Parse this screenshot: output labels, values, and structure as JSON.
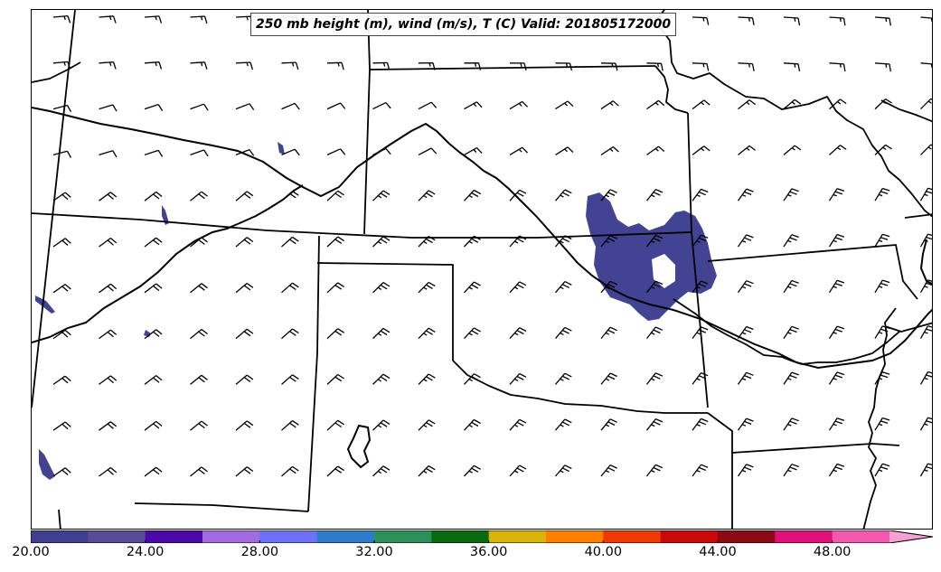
{
  "title": "250 mb height (m), wind (m/s), T (C) Valid: 201805172000",
  "colorbar": {
    "tick_labels": [
      "20.00",
      "24.00",
      "28.00",
      "32.00",
      "36.00",
      "40.00",
      "44.00",
      "48.00"
    ],
    "tick_values": [
      20,
      24,
      28,
      32,
      36,
      40,
      44,
      48
    ],
    "min": 20,
    "max": 51.5,
    "extend": "max",
    "bins": [
      {
        "from": 20,
        "to": 22,
        "color": "#3f3f8f"
      },
      {
        "from": 22,
        "to": 24,
        "color": "#5a4b99"
      },
      {
        "from": 24,
        "to": 26,
        "color": "#4a0aa8"
      },
      {
        "from": 26,
        "to": 28,
        "color": "#a36be0"
      },
      {
        "from": 28,
        "to": 30,
        "color": "#6b72f5"
      },
      {
        "from": 30,
        "to": 32,
        "color": "#2f7ac9"
      },
      {
        "from": 32,
        "to": 34,
        "color": "#2e8f5a"
      },
      {
        "from": 34,
        "to": 36,
        "color": "#0a6a12"
      },
      {
        "from": 36,
        "to": 38,
        "color": "#d9b20a"
      },
      {
        "from": 38,
        "to": 40,
        "color": "#ff7f00"
      },
      {
        "from": 40,
        "to": 42,
        "color": "#ee3a05"
      },
      {
        "from": 42,
        "to": 44,
        "color": "#c8080a"
      },
      {
        "from": 44,
        "to": 46,
        "color": "#8c0a14"
      },
      {
        "from": 46,
        "to": 48,
        "color": "#e0107a"
      },
      {
        "from": 48,
        "to": 50,
        "color": "#f25ab0"
      }
    ],
    "extend_color": "#f7a0d2"
  },
  "wind_field": {
    "barb_color": "#000000",
    "north_regime": "west-to-east flow, ~10-15 m/s",
    "south_regime": "southwesterly flow, ~20-25 m/s"
  },
  "shading_color": "#434393"
}
